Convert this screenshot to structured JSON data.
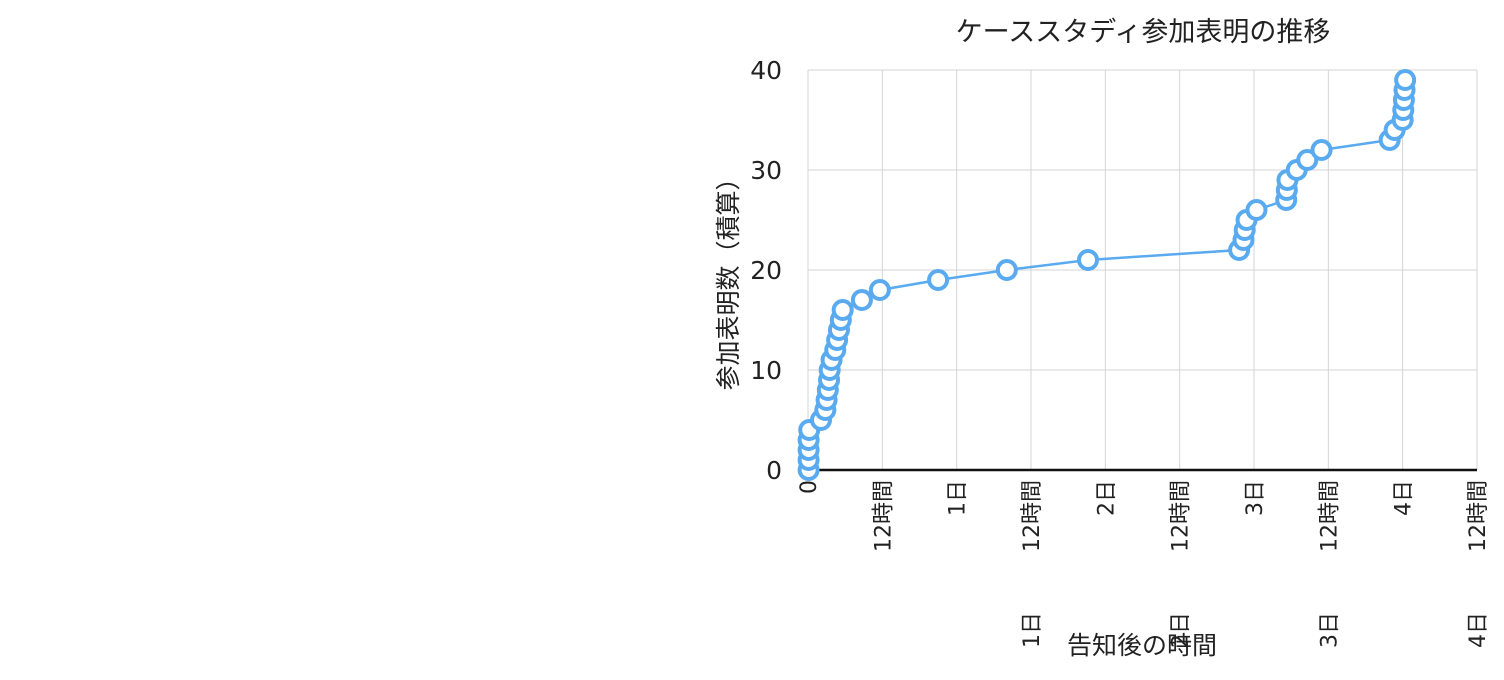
{
  "chart_data": {
    "type": "line",
    "title": "ケーススタディ参加表明の推移",
    "xlabel": "告知後の時間",
    "ylabel": "参加表明数（積算）",
    "x_unit": "hours",
    "xlim": [
      0,
      108
    ],
    "ylim": [
      0,
      40
    ],
    "y_ticks": [
      0,
      10,
      20,
      30,
      40
    ],
    "x_ticks": [
      {
        "value": 0,
        "label": "0"
      },
      {
        "value": 12,
        "label": "12時間"
      },
      {
        "value": 24,
        "label": "1日"
      },
      {
        "value": 36,
        "label": "1日 12時間"
      },
      {
        "value": 48,
        "label": "2日"
      },
      {
        "value": 60,
        "label": "2日 12時間"
      },
      {
        "value": 72,
        "label": "3日"
      },
      {
        "value": 84,
        "label": "3日 12時間"
      },
      {
        "value": 96,
        "label": "4日"
      },
      {
        "value": 108,
        "label": "4日 12時間"
      }
    ],
    "grid": true,
    "legend": "none",
    "series": [
      {
        "name": "参加表明数（積算）",
        "color": "#5aaaf0",
        "marker": "open-circle",
        "points": [
          {
            "x": 0.1,
            "y": 0
          },
          {
            "x": 0.1,
            "y": 1
          },
          {
            "x": 0.1,
            "y": 2
          },
          {
            "x": 0.1,
            "y": 3
          },
          {
            "x": 0.2,
            "y": 4
          },
          {
            "x": 2.1,
            "y": 5
          },
          {
            "x": 2.8,
            "y": 6
          },
          {
            "x": 3.0,
            "y": 7
          },
          {
            "x": 3.2,
            "y": 8
          },
          {
            "x": 3.4,
            "y": 9
          },
          {
            "x": 3.5,
            "y": 10
          },
          {
            "x": 3.8,
            "y": 11
          },
          {
            "x": 4.4,
            "y": 12
          },
          {
            "x": 4.7,
            "y": 13
          },
          {
            "x": 5.0,
            "y": 14
          },
          {
            "x": 5.3,
            "y": 15
          },
          {
            "x": 5.6,
            "y": 16
          },
          {
            "x": 8.7,
            "y": 17
          },
          {
            "x": 11.6,
            "y": 18
          },
          {
            "x": 21.0,
            "y": 19
          },
          {
            "x": 32.1,
            "y": 20
          },
          {
            "x": 45.2,
            "y": 21
          },
          {
            "x": 69.6,
            "y": 22
          },
          {
            "x": 70.3,
            "y": 23
          },
          {
            "x": 70.5,
            "y": 24
          },
          {
            "x": 70.8,
            "y": 25
          },
          {
            "x": 72.4,
            "y": 26
          },
          {
            "x": 77.2,
            "y": 27
          },
          {
            "x": 77.3,
            "y": 28
          },
          {
            "x": 77.4,
            "y": 29
          },
          {
            "x": 78.9,
            "y": 30
          },
          {
            "x": 80.6,
            "y": 31
          },
          {
            "x": 82.9,
            "y": 32
          },
          {
            "x": 93.9,
            "y": 33
          },
          {
            "x": 94.7,
            "y": 34
          },
          {
            "x": 96.0,
            "y": 35
          },
          {
            "x": 96.1,
            "y": 36
          },
          {
            "x": 96.2,
            "y": 37
          },
          {
            "x": 96.3,
            "y": 38
          },
          {
            "x": 96.4,
            "y": 39
          }
        ]
      }
    ]
  },
  "colors": {
    "series": "#5aaaf0",
    "grid": "#d4d4d4",
    "axis": "#111111",
    "marker_fill": "#ffffff"
  }
}
